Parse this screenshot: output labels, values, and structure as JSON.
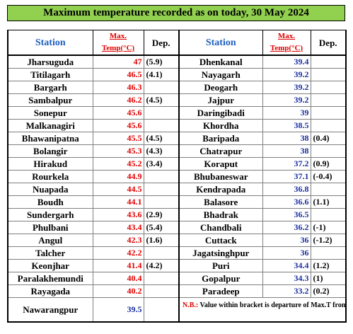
{
  "title": "Maximum temperature recorded as on today, 30 May 2024",
  "headers": {
    "station": "Station",
    "max_temp_line1": "Max.",
    "max_temp_line2": "Temp(°C)",
    "dep": "Dep."
  },
  "colors": {
    "title_bg": "#92d050",
    "left_temp": "#e00000",
    "right_temp": "#1a2fa0",
    "header_station": "#1f5fbf"
  },
  "left_rows": [
    {
      "station": "Jharsuguda",
      "temp": "47",
      "dep": "(5.9)",
      "color": "red"
    },
    {
      "station": "Titilagarh",
      "temp": "46.5",
      "dep": "(4.1)",
      "color": "red"
    },
    {
      "station": "Bargarh",
      "temp": "46.3",
      "dep": "",
      "color": "red"
    },
    {
      "station": "Sambalpur",
      "temp": "46.2",
      "dep": "(4.5)",
      "color": "red"
    },
    {
      "station": "Sonepur",
      "temp": "45.6",
      "dep": "",
      "color": "red"
    },
    {
      "station": "Malkanagiri",
      "temp": "45.6",
      "dep": "",
      "color": "red"
    },
    {
      "station": "Bhawanipatna",
      "temp": "45.5",
      "dep": "(4.5)",
      "color": "red"
    },
    {
      "station": "Bolangir",
      "temp": "45.3",
      "dep": "(4.3)",
      "color": "red"
    },
    {
      "station": "Hirakud",
      "temp": "45.2",
      "dep": "(3.4)",
      "color": "red"
    },
    {
      "station": "Rourkela",
      "temp": "44.9",
      "dep": "",
      "color": "red"
    },
    {
      "station": "Nuapada",
      "temp": "44.5",
      "dep": "",
      "color": "red"
    },
    {
      "station": "Boudh",
      "temp": "44.1",
      "dep": "",
      "color": "red"
    },
    {
      "station": "Sundergarh",
      "temp": "43.6",
      "dep": "(2.9)",
      "color": "red"
    },
    {
      "station": "Phulbani",
      "temp": "43.4",
      "dep": "(5.4)",
      "color": "red"
    },
    {
      "station": "Angul",
      "temp": "42.3",
      "dep": "(1.6)",
      "color": "red"
    },
    {
      "station": "Talcher",
      "temp": "42.2",
      "dep": "",
      "color": "red"
    },
    {
      "station": "Keonjhar",
      "temp": "41.4",
      "dep": "(4.2)",
      "color": "red"
    },
    {
      "station": "Paralakhemundi",
      "temp": "40.4",
      "dep": "",
      "color": "red"
    },
    {
      "station": "Rayagada",
      "temp": "40.2",
      "dep": "",
      "color": "red"
    },
    {
      "station": "Nawarangpur",
      "temp": "39.5",
      "dep": "",
      "color": "blue"
    }
  ],
  "right_rows": [
    {
      "station": "Dhenkanal",
      "temp": "39.4",
      "dep": ""
    },
    {
      "station": "Nayagarh",
      "temp": "39.2",
      "dep": ""
    },
    {
      "station": "Deogarh",
      "temp": "39.2",
      "dep": ""
    },
    {
      "station": "Jajpur",
      "temp": "39.2",
      "dep": ""
    },
    {
      "station": "Daringibadi",
      "temp": "39",
      "dep": ""
    },
    {
      "station": "Khordha",
      "temp": "38.5",
      "dep": ""
    },
    {
      "station": "Baripada",
      "temp": "38",
      "dep": "(0.4)"
    },
    {
      "station": "Chatrapur",
      "temp": "38",
      "dep": ""
    },
    {
      "station": "Koraput",
      "temp": "37.2",
      "dep": "(0.9)"
    },
    {
      "station": "Bhubaneswar",
      "temp": "37.1",
      "dep": "(-0.4)"
    },
    {
      "station": "Kendrapada",
      "temp": "36.8",
      "dep": ""
    },
    {
      "station": "Balasore",
      "temp": "36.6",
      "dep": "(1.1)"
    },
    {
      "station": "Bhadrak",
      "temp": "36.5",
      "dep": ""
    },
    {
      "station": "Chandbali",
      "temp": "36.2",
      "dep": "(-1)"
    },
    {
      "station": "Cuttack",
      "temp": "36",
      "dep": "(-1.2)"
    },
    {
      "station": "Jagatsinghpur",
      "temp": "36",
      "dep": ""
    },
    {
      "station": "Puri",
      "temp": "34.4",
      "dep": "(1.2)"
    },
    {
      "station": "Gopalpur",
      "temp": "34.3",
      "dep": "(1)"
    },
    {
      "station": "Paradeep",
      "temp": "33.2",
      "dep": "(0.2)"
    }
  ],
  "note": {
    "label": "N.B.:",
    "text": " Value within bracket is departure of Max.T from normal for available stations."
  }
}
